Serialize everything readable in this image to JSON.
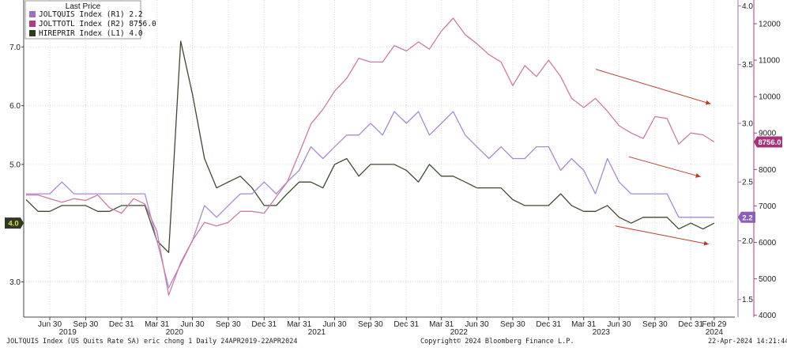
{
  "chart_data": {
    "type": "line",
    "legend": {
      "title": "Last Price",
      "placement": "top-left",
      "entries": [
        {
          "label": "JOLTQUIS Index (R1) 2.2",
          "color": "#9b6fc4"
        },
        {
          "label": "JOLTTOTL Index (R2) 8756.0",
          "color": "#b13a83"
        },
        {
          "label": "HIREPRIR Index (L1) 4.0",
          "color": "#2e3a22"
        }
      ]
    },
    "x_ticks": [
      {
        "date": "2019-06-30",
        "label": "Jun 30"
      },
      {
        "date": "2019-09-30",
        "label": "Sep 30"
      },
      {
        "date": "2019-12-31",
        "label": "Dec 31"
      },
      {
        "date": "2020-03-31",
        "label": "Mar 31"
      },
      {
        "date": "2020-06-30",
        "label": "Jun 30"
      },
      {
        "date": "2020-09-30",
        "label": "Sep 30"
      },
      {
        "date": "2020-12-31",
        "label": "Dec 31"
      },
      {
        "date": "2021-03-31",
        "label": "Mar 31"
      },
      {
        "date": "2021-06-30",
        "label": "Jun 30"
      },
      {
        "date": "2021-09-30",
        "label": "Sep 30"
      },
      {
        "date": "2021-12-31",
        "label": "Dec 31"
      },
      {
        "date": "2022-03-31",
        "label": "Mar 31"
      },
      {
        "date": "2022-06-30",
        "label": "Jun 30"
      },
      {
        "date": "2022-09-30",
        "label": "Sep 30"
      },
      {
        "date": "2022-12-31",
        "label": "Dec 31"
      },
      {
        "date": "2023-03-31",
        "label": "Mar 31"
      },
      {
        "date": "2023-06-30",
        "label": "Jun 30"
      },
      {
        "date": "2023-09-30",
        "label": "Sep 30"
      },
      {
        "date": "2023-12-31",
        "label": "Dec 31"
      },
      {
        "date": "2024-02-29",
        "label": "Feb 29"
      }
    ],
    "year_labels": [
      {
        "date": "2019-08-15",
        "label": "2019"
      },
      {
        "date": "2020-05-15",
        "label": "2020"
      },
      {
        "date": "2021-05-15",
        "label": "2021"
      },
      {
        "date": "2022-05-15",
        "label": "2022"
      },
      {
        "date": "2023-05-15",
        "label": "2023"
      },
      {
        "date": "2024-02-29",
        "label": "2024"
      }
    ],
    "x_range": [
      "2019-04-24",
      "2024-04-22"
    ],
    "axes": {
      "left": {
        "range": [
          2.4,
          7.8
        ],
        "ticks": [
          3.0,
          4.0,
          5.0,
          6.0,
          7.0
        ],
        "tick_labels": [
          "3.0",
          "4.0",
          "5.0",
          "6.0",
          "7.0"
        ]
      },
      "right1": {
        "range": [
          1.35,
          4.05
        ],
        "ticks": [
          1.5,
          2.0,
          2.5,
          3.0,
          3.5,
          4.0
        ],
        "tick_labels": [
          "1.5",
          "2.0",
          "2.5",
          "3.0",
          "3.5",
          "4.0"
        ]
      },
      "right2": {
        "range": [
          3950,
          12650
        ],
        "ticks": [
          4000,
          5000,
          6000,
          7000,
          8000,
          9000,
          10000,
          11000,
          12000
        ],
        "tick_labels": [
          "4000",
          "5000",
          "6000",
          "7000",
          "8000",
          "9000",
          "10000",
          "11000",
          "12000"
        ]
      }
    },
    "series": [
      {
        "name": "HIREPRIR Index",
        "axis": "left",
        "color": "#3d4a2e",
        "last_label": "4.0",
        "points": [
          [
            "2019-04-30",
            4.4
          ],
          [
            "2019-05-31",
            4.2
          ],
          [
            "2019-06-30",
            4.2
          ],
          [
            "2019-07-31",
            4.3
          ],
          [
            "2019-08-31",
            4.3
          ],
          [
            "2019-09-30",
            4.3
          ],
          [
            "2019-10-31",
            4.2
          ],
          [
            "2019-11-30",
            4.2
          ],
          [
            "2019-12-31",
            4.3
          ],
          [
            "2020-01-31",
            4.3
          ],
          [
            "2020-02-29",
            4.3
          ],
          [
            "2020-03-31",
            3.7
          ],
          [
            "2020-04-30",
            3.5
          ],
          [
            "2020-05-31",
            7.1
          ],
          [
            "2020-06-30",
            6.2
          ],
          [
            "2020-07-31",
            5.1
          ],
          [
            "2020-08-31",
            4.6
          ],
          [
            "2020-09-30",
            4.7
          ],
          [
            "2020-10-31",
            4.8
          ],
          [
            "2020-11-30",
            4.6
          ],
          [
            "2020-12-31",
            4.3
          ],
          [
            "2021-01-31",
            4.3
          ],
          [
            "2021-02-28",
            4.5
          ],
          [
            "2021-03-31",
            4.7
          ],
          [
            "2021-04-30",
            4.7
          ],
          [
            "2021-05-31",
            4.6
          ],
          [
            "2021-06-30",
            5.0
          ],
          [
            "2021-07-31",
            5.1
          ],
          [
            "2021-08-31",
            4.8
          ],
          [
            "2021-09-30",
            5.0
          ],
          [
            "2021-10-31",
            5.0
          ],
          [
            "2021-11-30",
            5.0
          ],
          [
            "2021-12-31",
            4.9
          ],
          [
            "2022-01-31",
            4.7
          ],
          [
            "2022-02-28",
            5.0
          ],
          [
            "2022-03-31",
            4.8
          ],
          [
            "2022-04-30",
            4.8
          ],
          [
            "2022-05-31",
            4.7
          ],
          [
            "2022-06-30",
            4.6
          ],
          [
            "2022-07-31",
            4.6
          ],
          [
            "2022-08-31",
            4.6
          ],
          [
            "2022-09-30",
            4.4
          ],
          [
            "2022-10-31",
            4.3
          ],
          [
            "2022-11-30",
            4.3
          ],
          [
            "2022-12-31",
            4.3
          ],
          [
            "2023-01-31",
            4.5
          ],
          [
            "2023-02-28",
            4.3
          ],
          [
            "2023-03-31",
            4.2
          ],
          [
            "2023-04-30",
            4.2
          ],
          [
            "2023-05-31",
            4.3
          ],
          [
            "2023-06-30",
            4.1
          ],
          [
            "2023-07-31",
            4.0
          ],
          [
            "2023-08-31",
            4.1
          ],
          [
            "2023-09-30",
            4.1
          ],
          [
            "2023-10-31",
            4.1
          ],
          [
            "2023-11-30",
            3.9
          ],
          [
            "2023-12-31",
            4.0
          ],
          [
            "2024-01-31",
            3.9
          ],
          [
            "2024-02-29",
            4.0
          ]
        ]
      },
      {
        "name": "JOLTQUIS Index",
        "axis": "right1",
        "color": "#a98ad0",
        "last_label": "2.2",
        "points": [
          [
            "2019-04-30",
            2.4
          ],
          [
            "2019-05-31",
            2.4
          ],
          [
            "2019-06-30",
            2.4
          ],
          [
            "2019-07-31",
            2.5
          ],
          [
            "2019-08-31",
            2.4
          ],
          [
            "2019-09-30",
            2.4
          ],
          [
            "2019-10-31",
            2.4
          ],
          [
            "2019-11-30",
            2.4
          ],
          [
            "2019-12-31",
            2.4
          ],
          [
            "2020-01-31",
            2.4
          ],
          [
            "2020-02-29",
            2.4
          ],
          [
            "2020-03-31",
            2.0
          ],
          [
            "2020-04-30",
            1.6
          ],
          [
            "2020-05-31",
            1.8
          ],
          [
            "2020-06-30",
            2.0
          ],
          [
            "2020-07-31",
            2.3
          ],
          [
            "2020-08-31",
            2.2
          ],
          [
            "2020-09-30",
            2.3
          ],
          [
            "2020-10-31",
            2.4
          ],
          [
            "2020-11-30",
            2.4
          ],
          [
            "2020-12-31",
            2.5
          ],
          [
            "2021-01-31",
            2.4
          ],
          [
            "2021-02-28",
            2.5
          ],
          [
            "2021-03-31",
            2.6
          ],
          [
            "2021-04-30",
            2.8
          ],
          [
            "2021-05-31",
            2.7
          ],
          [
            "2021-06-30",
            2.8
          ],
          [
            "2021-07-31",
            2.9
          ],
          [
            "2021-08-31",
            2.9
          ],
          [
            "2021-09-30",
            3.0
          ],
          [
            "2021-10-31",
            2.9
          ],
          [
            "2021-11-30",
            3.1
          ],
          [
            "2021-12-31",
            3.0
          ],
          [
            "2022-01-31",
            3.1
          ],
          [
            "2022-02-28",
            2.9
          ],
          [
            "2022-03-31",
            3.0
          ],
          [
            "2022-04-30",
            3.1
          ],
          [
            "2022-05-31",
            2.9
          ],
          [
            "2022-06-30",
            2.8
          ],
          [
            "2022-07-31",
            2.7
          ],
          [
            "2022-08-31",
            2.8
          ],
          [
            "2022-09-30",
            2.7
          ],
          [
            "2022-10-31",
            2.7
          ],
          [
            "2022-11-30",
            2.8
          ],
          [
            "2022-12-31",
            2.8
          ],
          [
            "2023-01-31",
            2.6
          ],
          [
            "2023-02-28",
            2.7
          ],
          [
            "2023-03-31",
            2.6
          ],
          [
            "2023-04-30",
            2.4
          ],
          [
            "2023-05-31",
            2.7
          ],
          [
            "2023-06-30",
            2.5
          ],
          [
            "2023-07-31",
            2.4
          ],
          [
            "2023-08-31",
            2.4
          ],
          [
            "2023-09-30",
            2.4
          ],
          [
            "2023-10-31",
            2.4
          ],
          [
            "2023-11-30",
            2.2
          ],
          [
            "2023-12-31",
            2.2
          ],
          [
            "2024-01-31",
            2.2
          ],
          [
            "2024-02-29",
            2.2
          ]
        ]
      },
      {
        "name": "JOLTTOTL Index",
        "axis": "right2",
        "color": "#cc7aa6",
        "last_label": "8756.0",
        "points": [
          [
            "2019-04-30",
            7300
          ],
          [
            "2019-05-31",
            7300
          ],
          [
            "2019-06-30",
            7200
          ],
          [
            "2019-07-31",
            7100
          ],
          [
            "2019-08-31",
            7200
          ],
          [
            "2019-09-30",
            7150
          ],
          [
            "2019-10-31",
            7300
          ],
          [
            "2019-11-30",
            6950
          ],
          [
            "2019-12-31",
            6800
          ],
          [
            "2020-01-31",
            7200
          ],
          [
            "2020-02-29",
            7050
          ],
          [
            "2020-03-31",
            6300
          ],
          [
            "2020-04-30",
            4550
          ],
          [
            "2020-05-31",
            5450
          ],
          [
            "2020-06-30",
            6050
          ],
          [
            "2020-07-31",
            6550
          ],
          [
            "2020-08-31",
            6450
          ],
          [
            "2020-09-30",
            6550
          ],
          [
            "2020-10-31",
            6850
          ],
          [
            "2020-11-30",
            6850
          ],
          [
            "2020-12-31",
            6800
          ],
          [
            "2021-01-31",
            7250
          ],
          [
            "2021-02-28",
            7650
          ],
          [
            "2021-03-31",
            8450
          ],
          [
            "2021-04-30",
            9250
          ],
          [
            "2021-05-31",
            9650
          ],
          [
            "2021-06-30",
            10150
          ],
          [
            "2021-07-31",
            10500
          ],
          [
            "2021-08-31",
            11050
          ],
          [
            "2021-09-30",
            10950
          ],
          [
            "2021-10-31",
            10950
          ],
          [
            "2021-11-30",
            11400
          ],
          [
            "2021-12-31",
            11250
          ],
          [
            "2022-01-31",
            11500
          ],
          [
            "2022-02-28",
            11300
          ],
          [
            "2022-03-31",
            11800
          ],
          [
            "2022-04-30",
            12150
          ],
          [
            "2022-05-31",
            11700
          ],
          [
            "2022-06-30",
            11450
          ],
          [
            "2022-07-31",
            11150
          ],
          [
            "2022-08-31",
            10950
          ],
          [
            "2022-09-30",
            10300
          ],
          [
            "2022-10-31",
            10850
          ],
          [
            "2022-11-30",
            10550
          ],
          [
            "2022-12-31",
            11000
          ],
          [
            "2023-01-31",
            10550
          ],
          [
            "2023-02-28",
            9950
          ],
          [
            "2023-03-31",
            9700
          ],
          [
            "2023-04-30",
            9950
          ],
          [
            "2023-05-31",
            9600
          ],
          [
            "2023-06-30",
            9200
          ],
          [
            "2023-07-31",
            9000
          ],
          [
            "2023-08-31",
            8850
          ],
          [
            "2023-09-30",
            9450
          ],
          [
            "2023-10-31",
            9400
          ],
          [
            "2023-11-30",
            8700
          ],
          [
            "2023-12-31",
            9000
          ],
          [
            "2024-01-31",
            8950
          ],
          [
            "2024-02-29",
            8756
          ]
        ]
      }
    ],
    "arrows": [
      {
        "from": [
          "2023-05-01",
          10750
        ],
        "to": [
          "2024-02-20",
          9800
        ],
        "axis": "right2",
        "color": "#c0392b"
      },
      {
        "from": [
          "2023-07-25",
          8350
        ],
        "to": [
          "2024-01-25",
          7800
        ],
        "axis": "right2",
        "color": "#c0392b"
      },
      {
        "from": [
          "2023-06-20",
          6450
        ],
        "to": [
          "2024-02-15",
          5950
        ],
        "axis": "right2",
        "color": "#c0392b"
      }
    ]
  },
  "footer": {
    "left": "JOLTQUIS Index (US Quits Rate SA) eric chong 1  Daily 24APR2019-22APR2024",
    "center": "Copyright© 2024 Bloomberg Finance L.P.",
    "right": "22-Apr-2024 14:21:44"
  }
}
